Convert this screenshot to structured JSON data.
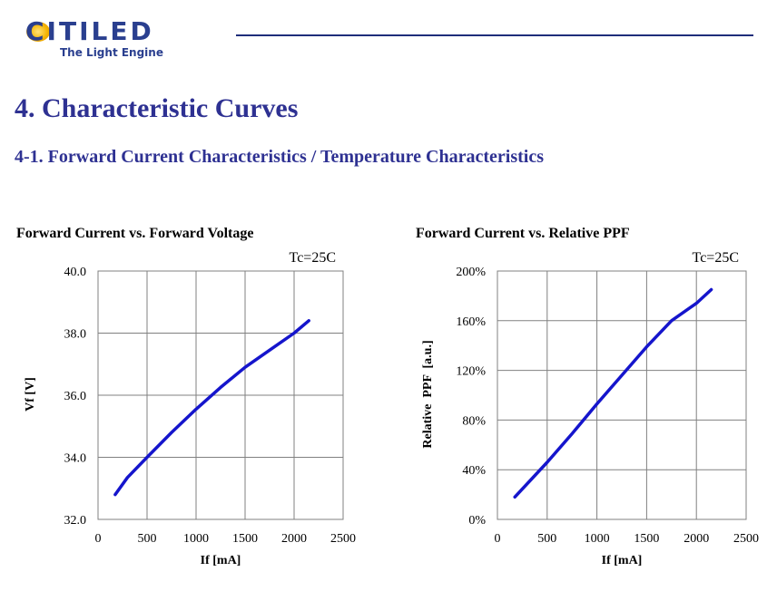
{
  "header": {
    "logo_text": "CITILED",
    "tagline": "The Light Engine"
  },
  "page_title": "4. Characteristic Curves",
  "section_title": "4-1. Forward Current Characteristics / Temperature Characteristics",
  "colors": {
    "title": "#2e3192",
    "curve": "#1515cc",
    "grid": "#808080"
  },
  "chart_data": [
    {
      "type": "line",
      "title": "Forward Current vs. Forward Voltage",
      "annotation": "Tc=25C",
      "xlabel": "If [mA]",
      "ylabel": "Vf [V]",
      "xlim": [
        0,
        2500
      ],
      "ylim": [
        32.0,
        40.0
      ],
      "x_ticks": [
        "0",
        "500",
        "1000",
        "1500",
        "2000",
        "2500"
      ],
      "y_ticks": [
        "32.0",
        "34.0",
        "36.0",
        "38.0",
        "40.0"
      ],
      "grid": true,
      "series": [
        {
          "x": [
            175,
            300,
            500,
            750,
            1000,
            1250,
            1500,
            1750,
            2000,
            2150
          ],
          "y": [
            32.8,
            33.35,
            34.0,
            34.8,
            35.55,
            36.25,
            36.9,
            37.45,
            38.0,
            38.4
          ]
        }
      ]
    },
    {
      "type": "line",
      "title": "Forward Current vs. Relative PPF",
      "annotation": "Tc=25C",
      "xlabel": "If [mA]",
      "ylabel": "Relative  PPF  [a.u.]",
      "xlim": [
        0,
        2500
      ],
      "ylim": [
        0,
        200
      ],
      "x_ticks": [
        "0",
        "500",
        "1000",
        "1500",
        "2000",
        "2500"
      ],
      "y_ticks": [
        "0%",
        "40%",
        "80%",
        "120%",
        "160%",
        "200%"
      ],
      "grid": true,
      "series": [
        {
          "x": [
            175,
            500,
            750,
            1000,
            1250,
            1500,
            1750,
            2000,
            2150
          ],
          "y": [
            18,
            46,
            69,
            93,
            116,
            139,
            160,
            174,
            185
          ]
        }
      ]
    }
  ]
}
